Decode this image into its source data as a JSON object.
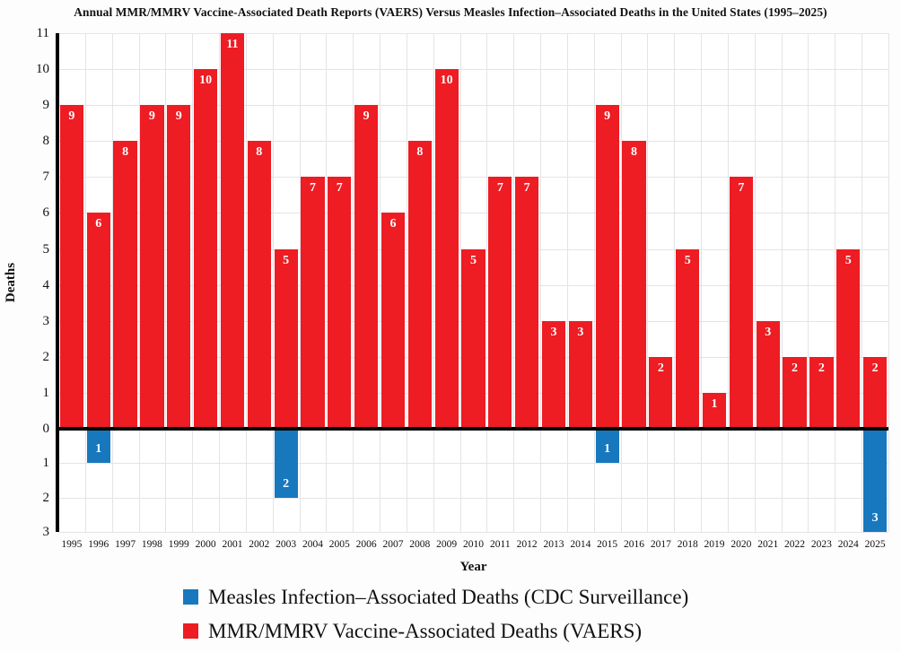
{
  "chart_data": {
    "type": "bar",
    "subtype": "diverging-vertical",
    "title": "Annual MMR/MMRV Vaccine-Associated Death Reports (VAERS) Versus Measles Infection–Associated Deaths in the United States (1995–2025)",
    "xlabel": "Year",
    "ylabel": "Deaths",
    "categories": [
      "1995",
      "1996",
      "1997",
      "1998",
      "1999",
      "2000",
      "2001",
      "2002",
      "2003",
      "2004",
      "2005",
      "2006",
      "2007",
      "2008",
      "2009",
      "2010",
      "2011",
      "2012",
      "2013",
      "2014",
      "2015",
      "2016",
      "2017",
      "2018",
      "2019",
      "2020",
      "2021",
      "2022",
      "2023",
      "2024",
      "2025"
    ],
    "series": [
      {
        "name": "MMR/MMRV Vaccine-Associated Deaths (VAERS)",
        "color": "#ee1c23",
        "direction": "up",
        "axis_max": 11,
        "values": [
          9,
          6,
          8,
          9,
          9,
          10,
          11,
          8,
          5,
          7,
          7,
          9,
          6,
          8,
          10,
          5,
          7,
          7,
          3,
          3,
          9,
          8,
          2,
          5,
          1,
          7,
          3,
          2,
          2,
          5,
          2
        ]
      },
      {
        "name": "Measles Infection–Associated Deaths (CDC Surveillance)",
        "color": "#1878be",
        "direction": "down",
        "axis_max": 3,
        "values": [
          0,
          1,
          0,
          0,
          0,
          0,
          0,
          0,
          2,
          0,
          0,
          0,
          0,
          0,
          0,
          0,
          0,
          0,
          0,
          0,
          1,
          0,
          0,
          0,
          0,
          0,
          0,
          0,
          0,
          0,
          3
        ]
      }
    ],
    "y_ticks_up": [
      0,
      1,
      2,
      3,
      4,
      5,
      6,
      7,
      8,
      9,
      10,
      11
    ],
    "y_ticks_down": [
      1,
      2,
      3
    ],
    "grid": true,
    "bar_value_labels": "shown-inside-bars",
    "legend_position": "bottom-left"
  },
  "legend": {
    "items": [
      {
        "label": "Measles Infection–Associated Deaths (CDC Surveillance)",
        "color": "#1878be"
      },
      {
        "label": "MMR/MMRV Vaccine-Associated Deaths (VAERS)",
        "color": "#ee1c23"
      }
    ]
  }
}
